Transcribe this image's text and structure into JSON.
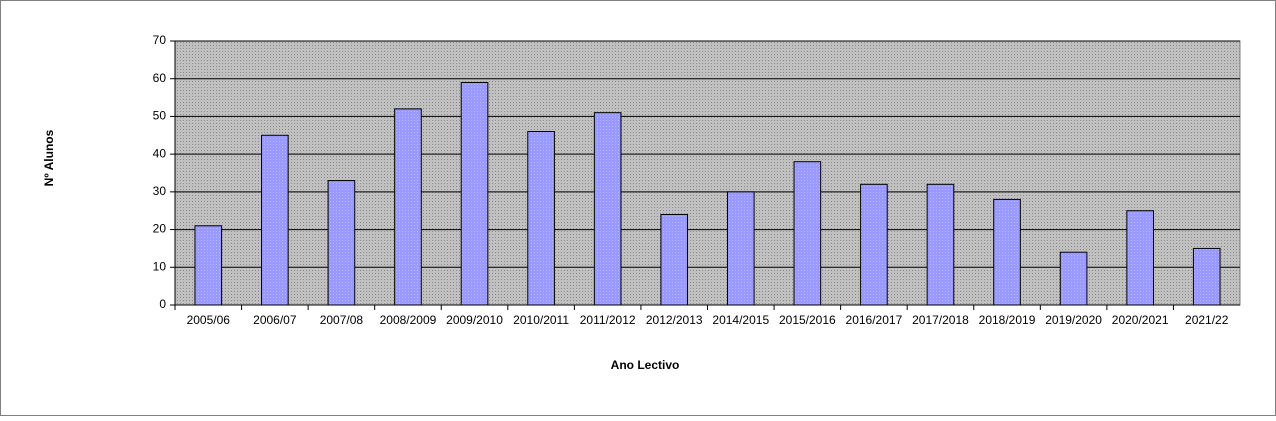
{
  "chart_data": {
    "type": "bar",
    "x_label": "Ano Lectivo",
    "y_label": "Nº Alunos",
    "categories": [
      "2005/06",
      "2006/07",
      "2007/08",
      "2008/2009",
      "2009/2010",
      "2010/2011",
      "2011/2012",
      "2012/2013",
      "2014/2015",
      "2015/2016",
      "2016/2017",
      "2017/2018",
      "2018/2019",
      "2019/2020",
      "2020/2021",
      "2021/22"
    ],
    "values": [
      21,
      45,
      33,
      52,
      59,
      46,
      51,
      24,
      30,
      38,
      32,
      32,
      28,
      14,
      25,
      15
    ],
    "color": "#9999ff",
    "ylim": [
      0,
      70
    ],
    "yticks": [
      0,
      10,
      20,
      30,
      40,
      50,
      60,
      70
    ],
    "grid": true
  }
}
